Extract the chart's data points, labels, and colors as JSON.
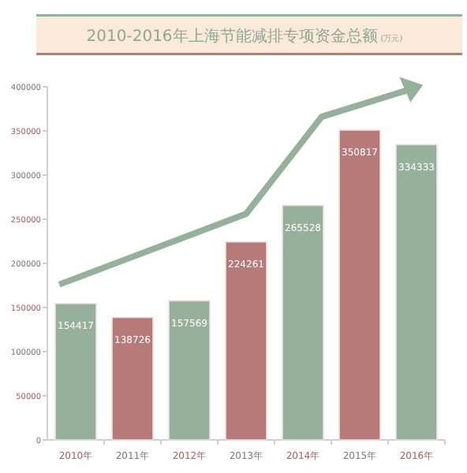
{
  "chart_data": {
    "type": "bar",
    "title": "2010-2016年上海节能减排专项资金总额",
    "subtitle": "(万元)",
    "categories": [
      "2010年",
      "2011年",
      "2012年",
      "2013年",
      "2014年",
      "2015年",
      "2016年"
    ],
    "values": [
      154417,
      138726,
      157569,
      224261,
      265528,
      350817,
      334333
    ],
    "colors": [
      "#97b09c",
      "#b77a78",
      "#97b09c",
      "#b77a78",
      "#97b09c",
      "#b77a78",
      "#97b09c"
    ],
    "ylim": [
      0,
      400000
    ],
    "yticks": [
      0,
      50000,
      100000,
      150000,
      200000,
      250000,
      300000,
      350000,
      400000
    ],
    "data_labels": true,
    "grid": false
  }
}
